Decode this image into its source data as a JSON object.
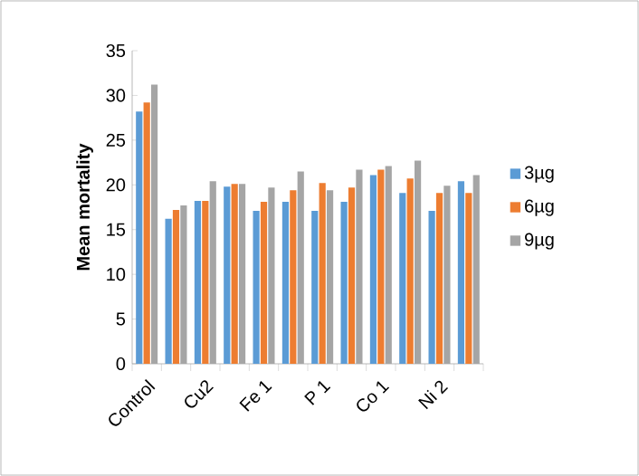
{
  "chart_data": {
    "type": "bar",
    "ylabel": "Mean mortality",
    "categories": [
      "Control",
      null,
      "Cu2",
      null,
      "Fe 1",
      null,
      "P 1",
      null,
      "Co 1",
      null,
      "Ni 2",
      null
    ],
    "series": [
      {
        "name": "3µg",
        "color": "#5b9bd5",
        "values": [
          28.2,
          16.2,
          18.2,
          19.8,
          17.1,
          18.1,
          17.1,
          18.1,
          21.1,
          19.1,
          17.1,
          20.4
        ]
      },
      {
        "name": "6µg",
        "color": "#ed7d31",
        "values": [
          29.2,
          17.2,
          18.2,
          20.1,
          18.1,
          19.4,
          20.2,
          19.7,
          21.7,
          20.7,
          19.1,
          19.1
        ]
      },
      {
        "name": "9µg",
        "color": "#a5a5a5",
        "values": [
          31.2,
          17.7,
          20.4,
          20.1,
          19.7,
          21.5,
          19.4,
          21.7,
          22.1,
          22.7,
          19.9,
          21.1
        ]
      }
    ],
    "ylim": [
      0,
      35
    ],
    "yticks": [
      0,
      5,
      10,
      15,
      20,
      25,
      30,
      35
    ],
    "grid": false,
    "legend": "right"
  }
}
